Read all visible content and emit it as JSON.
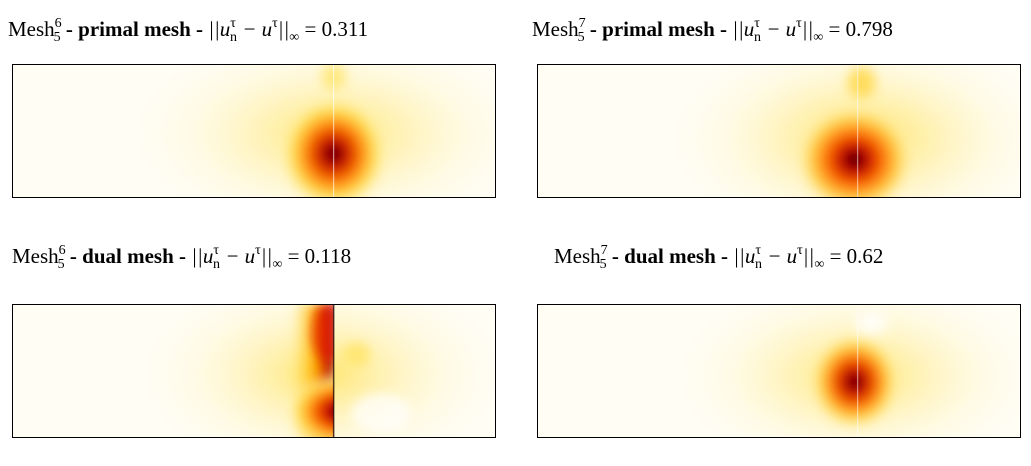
{
  "panels": [
    {
      "mesh_base": "Mesh",
      "mesh_sup": "6",
      "mesh_sub": "5",
      "kind": "primal mesh",
      "norm_text": "||u",
      "norm_sub": "n",
      "norm_sup": "τ",
      "minus_text": " − u",
      "minus_sup": "τ",
      "close_text": "||",
      "inf": "∞",
      "eq": " = ",
      "value": "0.311",
      "variant": "primal6"
    },
    {
      "mesh_base": "Mesh",
      "mesh_sup": "7",
      "mesh_sub": "5",
      "kind": "primal mesh",
      "norm_text": "||u",
      "norm_sub": "n",
      "norm_sup": "τ",
      "minus_text": " − u",
      "minus_sup": "τ",
      "close_text": "||",
      "inf": "∞",
      "eq": " = ",
      "value": "0.798",
      "variant": "primal7"
    },
    {
      "mesh_base": "Mesh",
      "mesh_sup": "6",
      "mesh_sub": "5",
      "kind": "dual mesh",
      "norm_text": "||u",
      "norm_sub": "n",
      "norm_sup": "τ",
      "minus_text": " − u",
      "minus_sup": "τ",
      "close_text": "||",
      "inf": "∞",
      "eq": " = ",
      "value": "0.118",
      "variant": "dual6"
    },
    {
      "mesh_base": "Mesh",
      "mesh_sup": "7",
      "mesh_sub": "5",
      "kind": "dual mesh",
      "norm_text": "||u",
      "norm_sub": "n",
      "norm_sup": "τ",
      "minus_text": " − u",
      "minus_sup": "τ",
      "close_text": "||",
      "inf": "∞",
      "eq": " = ",
      "value": "0.62",
      "variant": "dual7"
    }
  ],
  "colors": {
    "dark": "#2a0000",
    "red": "#d40000",
    "orange": "#ff8a00",
    "yellow": "#ffe84a",
    "pale": "#fffdf4"
  }
}
